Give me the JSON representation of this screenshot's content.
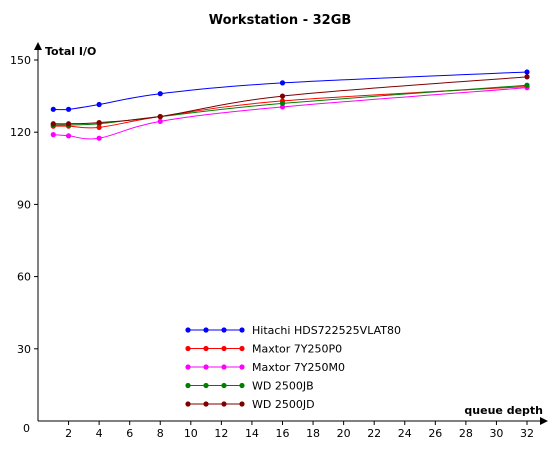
{
  "chart_data": {
    "type": "line",
    "title": "Workstation - 32GB",
    "xlabel": "queue depth",
    "ylabel": "Total I/O",
    "x": [
      1,
      2,
      4,
      8,
      16,
      32
    ],
    "xticks": [
      0,
      2,
      4,
      6,
      8,
      10,
      12,
      14,
      16,
      18,
      20,
      22,
      24,
      26,
      28,
      30,
      32
    ],
    "yticks": [
      0,
      30,
      60,
      90,
      120,
      150
    ],
    "xlim": [
      0,
      32
    ],
    "ylim": [
      0,
      150
    ],
    "grid": false,
    "legend_position": "bottom-center",
    "series": [
      {
        "name": "Hitachi HDS722525VLAT80",
        "color": "#0000ff",
        "values": [
          129.5,
          129.5,
          131.5,
          136,
          140.5,
          145
        ]
      },
      {
        "name": "Maxtor 7Y250P0",
        "color": "#ff0000",
        "values": [
          122.5,
          122.5,
          122,
          126.5,
          133,
          139
        ]
      },
      {
        "name": "Maxtor 7Y250M0",
        "color": "#ff00ff",
        "values": [
          119,
          118.5,
          117.5,
          124.5,
          130.5,
          138.5
        ]
      },
      {
        "name": "WD 2500JB",
        "color": "#008000",
        "values": [
          123,
          123,
          123.5,
          126.5,
          132,
          139.5
        ]
      },
      {
        "name": "WD 2500JD",
        "color": "#800000",
        "values": [
          123.5,
          123.5,
          124,
          126.5,
          135,
          143
        ]
      }
    ]
  }
}
